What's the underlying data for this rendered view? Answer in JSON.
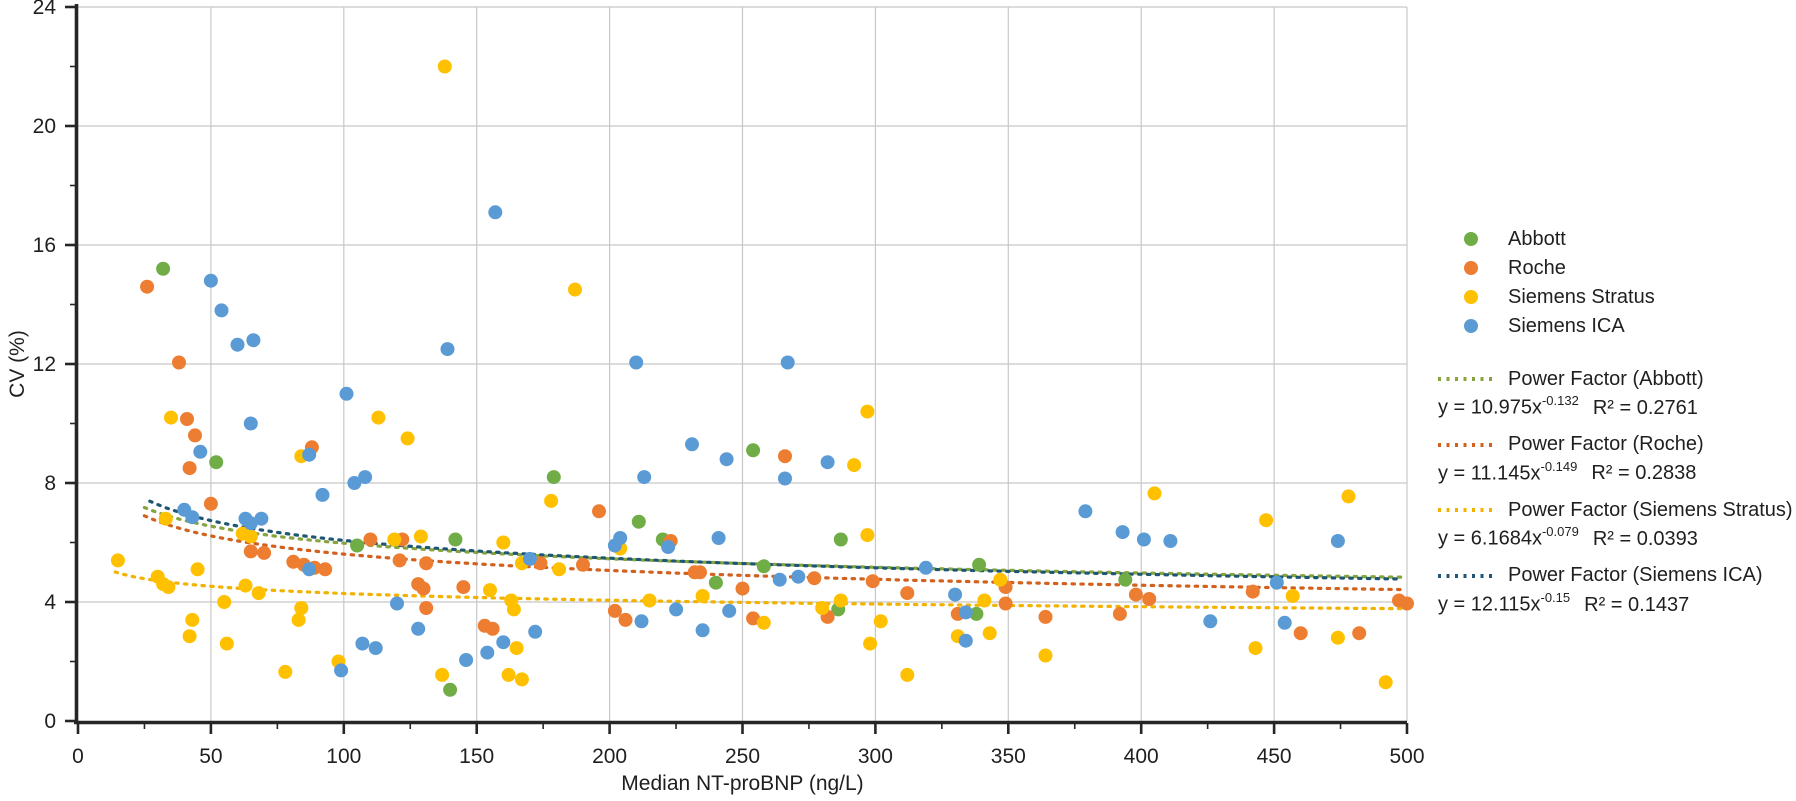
{
  "chart_data": {
    "type": "scatter",
    "title": "",
    "xlabel": "Median NT-proBNP (ng/L)",
    "ylabel": "CV (%)",
    "xlim": [
      0,
      500
    ],
    "ylim": [
      0,
      24
    ],
    "xticks": [
      0,
      50,
      100,
      150,
      200,
      250,
      300,
      350,
      400,
      450,
      500
    ],
    "yticks": [
      0,
      4,
      8,
      12,
      16,
      20,
      24
    ],
    "x_minor_step": 25,
    "y_minor_step": 2,
    "grid": true,
    "legend_position": "right",
    "grid_color": "#c8c8c8",
    "axis_color": "#262626",
    "series": [
      {
        "name": "Abbott",
        "color": "#70AD47",
        "points": [
          [
            32,
            15.2
          ],
          [
            52,
            8.7
          ],
          [
            105,
            5.9
          ],
          [
            140,
            1.05
          ],
          [
            142,
            6.1
          ],
          [
            179,
            8.2
          ],
          [
            211,
            6.7
          ],
          [
            220,
            6.1
          ],
          [
            240,
            4.65
          ],
          [
            254,
            9.1
          ],
          [
            258,
            5.2
          ],
          [
            286,
            3.75
          ],
          [
            287,
            6.1
          ],
          [
            338,
            3.6
          ],
          [
            339,
            5.25
          ],
          [
            394,
            4.75
          ]
        ]
      },
      {
        "name": "Roche",
        "color": "#ED7D31",
        "points": [
          [
            26,
            14.6
          ],
          [
            38,
            12.05
          ],
          [
            41,
            10.15
          ],
          [
            42,
            8.5
          ],
          [
            44,
            9.6
          ],
          [
            50,
            7.3
          ],
          [
            65,
            5.7
          ],
          [
            70,
            5.65
          ],
          [
            81,
            5.35
          ],
          [
            85,
            5.25
          ],
          [
            88,
            9.2
          ],
          [
            89,
            5.15
          ],
          [
            93,
            5.1
          ],
          [
            110,
            6.1
          ],
          [
            121,
            5.4
          ],
          [
            122,
            6.1
          ],
          [
            128,
            4.6
          ],
          [
            130,
            4.45
          ],
          [
            131,
            5.3
          ],
          [
            131,
            3.8
          ],
          [
            145,
            4.5
          ],
          [
            153,
            3.2
          ],
          [
            156,
            3.1
          ],
          [
            174,
            5.3
          ],
          [
            190,
            5.25
          ],
          [
            196,
            7.05
          ],
          [
            202,
            3.7
          ],
          [
            206,
            3.4
          ],
          [
            223,
            6.05
          ],
          [
            232,
            5.0
          ],
          [
            234,
            5.0
          ],
          [
            250,
            4.45
          ],
          [
            254,
            3.45
          ],
          [
            266,
            8.9
          ],
          [
            277,
            4.8
          ],
          [
            282,
            3.5
          ],
          [
            299,
            4.7
          ],
          [
            312,
            4.3
          ],
          [
            331,
            3.6
          ],
          [
            349,
            4.5
          ],
          [
            349,
            3.95
          ],
          [
            364,
            3.5
          ],
          [
            392,
            3.6
          ],
          [
            398,
            4.25
          ],
          [
            403,
            4.1
          ],
          [
            442,
            4.35
          ],
          [
            460,
            2.95
          ],
          [
            482,
            2.95
          ],
          [
            497,
            4.05
          ],
          [
            500,
            3.95
          ]
        ]
      },
      {
        "name": "Siemens Stratus",
        "color": "#FFC000",
        "points": [
          [
            15,
            5.4
          ],
          [
            30,
            4.85
          ],
          [
            32,
            4.6
          ],
          [
            33,
            6.8
          ],
          [
            34,
            4.5
          ],
          [
            35,
            10.2
          ],
          [
            42,
            2.85
          ],
          [
            43,
            3.4
          ],
          [
            45,
            5.1
          ],
          [
            55,
            4.0
          ],
          [
            56,
            2.6
          ],
          [
            62,
            6.3
          ],
          [
            63,
            4.55
          ],
          [
            65,
            6.2
          ],
          [
            68,
            4.3
          ],
          [
            78,
            1.65
          ],
          [
            83,
            3.4
          ],
          [
            84,
            8.9
          ],
          [
            84,
            3.8
          ],
          [
            98,
            2.0
          ],
          [
            113,
            10.2
          ],
          [
            119,
            6.1
          ],
          [
            124,
            9.5
          ],
          [
            129,
            6.2
          ],
          [
            137,
            1.55
          ],
          [
            138,
            22.0
          ],
          [
            155,
            4.4
          ],
          [
            160,
            6.0
          ],
          [
            162,
            1.55
          ],
          [
            163,
            4.05
          ],
          [
            164,
            3.75
          ],
          [
            165,
            2.45
          ],
          [
            167,
            5.3
          ],
          [
            167,
            1.4
          ],
          [
            178,
            7.4
          ],
          [
            181,
            5.1
          ],
          [
            187,
            14.5
          ],
          [
            204,
            5.8
          ],
          [
            215,
            4.05
          ],
          [
            235,
            4.2
          ],
          [
            258,
            3.3
          ],
          [
            280,
            3.8
          ],
          [
            287,
            4.05
          ],
          [
            292,
            8.6
          ],
          [
            297,
            10.4
          ],
          [
            297,
            6.25
          ],
          [
            298,
            2.6
          ],
          [
            302,
            3.35
          ],
          [
            312,
            1.55
          ],
          [
            331,
            2.85
          ],
          [
            341,
            4.05
          ],
          [
            343,
            2.95
          ],
          [
            347,
            4.75
          ],
          [
            364,
            2.2
          ],
          [
            405,
            7.65
          ],
          [
            443,
            2.45
          ],
          [
            447,
            6.75
          ],
          [
            457,
            4.2
          ],
          [
            474,
            2.8
          ],
          [
            478,
            7.55
          ],
          [
            492,
            1.3
          ]
        ]
      },
      {
        "name": "Siemens ICA",
        "color": "#5B9BD5",
        "points": [
          [
            40,
            7.1
          ],
          [
            43,
            6.85
          ],
          [
            46,
            9.05
          ],
          [
            50,
            14.8
          ],
          [
            54,
            13.8
          ],
          [
            60,
            12.65
          ],
          [
            63,
            6.8
          ],
          [
            65,
            10.0
          ],
          [
            65,
            6.65
          ],
          [
            66,
            12.8
          ],
          [
            69,
            6.8
          ],
          [
            87,
            8.95
          ],
          [
            87,
            5.1
          ],
          [
            92,
            7.6
          ],
          [
            99,
            1.7
          ],
          [
            101,
            11.0
          ],
          [
            104,
            8.0
          ],
          [
            107,
            2.6
          ],
          [
            108,
            8.2
          ],
          [
            112,
            2.45
          ],
          [
            120,
            3.95
          ],
          [
            128,
            3.1
          ],
          [
            139,
            12.5
          ],
          [
            146,
            2.05
          ],
          [
            154,
            2.3
          ],
          [
            157,
            17.1
          ],
          [
            160,
            2.65
          ],
          [
            170,
            5.45
          ],
          [
            172,
            3.0
          ],
          [
            202,
            5.9
          ],
          [
            204,
            6.15
          ],
          [
            210,
            12.05
          ],
          [
            212,
            3.35
          ],
          [
            213,
            8.2
          ],
          [
            222,
            5.85
          ],
          [
            225,
            3.75
          ],
          [
            231,
            9.3
          ],
          [
            235,
            3.05
          ],
          [
            241,
            6.15
          ],
          [
            244,
            8.8
          ],
          [
            245,
            3.7
          ],
          [
            264,
            4.75
          ],
          [
            266,
            8.15
          ],
          [
            267,
            12.05
          ],
          [
            271,
            4.85
          ],
          [
            282,
            8.7
          ],
          [
            319,
            5.15
          ],
          [
            330,
            4.25
          ],
          [
            334,
            3.65
          ],
          [
            334,
            2.7
          ],
          [
            379,
            7.05
          ],
          [
            393,
            6.35
          ],
          [
            401,
            6.1
          ],
          [
            411,
            6.05
          ],
          [
            426,
            3.35
          ],
          [
            451,
            4.65
          ],
          [
            454,
            3.3
          ],
          [
            474,
            6.05
          ]
        ]
      }
    ],
    "trendlines": [
      {
        "label": "Power Factor (Abbott)",
        "color": "#85A43B",
        "coef": 10.975,
        "power": -0.132,
        "x_start": 25,
        "eq_prefix": "y = 10.975x",
        "eq_exp": "-0.132",
        "eq_r2": "R² = 0.2761"
      },
      {
        "label": "Power Factor (Roche)",
        "color": "#D2601E",
        "coef": 11.145,
        "power": -0.149,
        "x_start": 25,
        "eq_prefix": "y = 11.145x",
        "eq_exp": "-0.149",
        "eq_r2": "R² = 0.2838"
      },
      {
        "label": "Power Factor (Siemens Stratus)",
        "color": "#F2B200",
        "coef": 6.1684,
        "power": -0.079,
        "x_start": 14,
        "eq_prefix": "y = 6.1684x",
        "eq_exp": "-0.079",
        "eq_r2": "R² = 0.0393"
      },
      {
        "label": "Power Factor (Siemens ICA)",
        "color": "#1F5673",
        "coef": 12.115,
        "power": -0.15,
        "x_start": 27,
        "eq_prefix": "y = 12.115x",
        "eq_exp": "-0.15",
        "eq_r2": "R² = 0.1437"
      }
    ]
  }
}
